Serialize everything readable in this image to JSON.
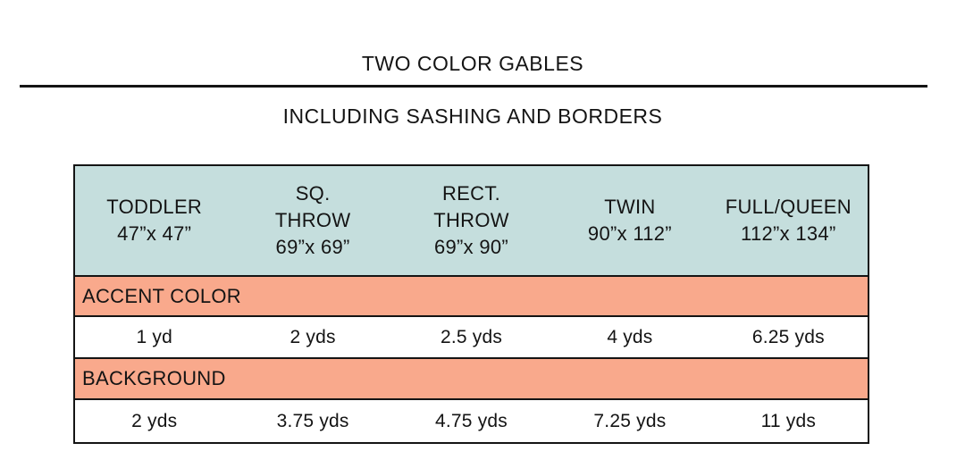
{
  "title": "TWO COLOR GABLES",
  "subtitle": "INCLUDING SASHING AND BORDERS",
  "colors": {
    "header_bg": "#c5dedd",
    "section_bg": "#f9a98c",
    "border": "#141414",
    "text": "#141414",
    "page_bg": "#ffffff"
  },
  "chart_data": {
    "type": "table",
    "title": "TWO COLOR GABLES",
    "subtitle": "INCLUDING SASHING AND BORDERS",
    "columns": [
      {
        "name": "TODDLER",
        "size": "47”x 47”"
      },
      {
        "name": "SQ. THROW",
        "size": "69”x 69”"
      },
      {
        "name": "RECT. THROW",
        "size": "69”x 90”"
      },
      {
        "name": "TWIN",
        "size": "90”x 112”"
      },
      {
        "name": "FULL/QUEEN",
        "size": "112”x 134”"
      }
    ],
    "sections": [
      {
        "label": "ACCENT COLOR",
        "values": [
          "1 yd",
          "2 yds",
          "2.5 yds",
          "4 yds",
          "6.25 yds"
        ]
      },
      {
        "label": "BACKGROUND",
        "values": [
          "2 yds",
          "3.75 yds",
          "4.75 yds",
          "7.25 yds",
          "11 yds"
        ]
      }
    ]
  }
}
